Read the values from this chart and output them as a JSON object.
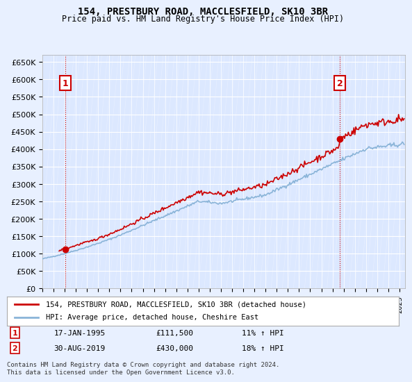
{
  "title": "154, PRESTBURY ROAD, MACCLESFIELD, SK10 3BR",
  "subtitle": "Price paid vs. HM Land Registry's House Price Index (HPI)",
  "property_label": "154, PRESTBURY ROAD, MACCLESFIELD, SK10 3BR (detached house)",
  "hpi_label": "HPI: Average price, detached house, Cheshire East",
  "annotation1": {
    "label": "1",
    "date": "17-JAN-1995",
    "price": 111500,
    "note": "11% ↑ HPI"
  },
  "annotation2": {
    "label": "2",
    "date": "30-AUG-2019",
    "price": 430000,
    "note": "18% ↑ HPI"
  },
  "footer": "Contains HM Land Registry data © Crown copyright and database right 2024.\nThis data is licensed under the Open Government Licence v3.0.",
  "ylim": [
    0,
    670000
  ],
  "yticks": [
    0,
    50000,
    100000,
    150000,
    200000,
    250000,
    300000,
    350000,
    400000,
    450000,
    500000,
    550000,
    600000,
    650000
  ],
  "background_color": "#e8f0ff",
  "plot_bg": "#dce8ff",
  "grid_color": "#ffffff",
  "line_color_property": "#cc0000",
  "line_color_hpi": "#8ab4d8",
  "annot_color": "#cc0000",
  "annot_box_color": "#cc0000"
}
